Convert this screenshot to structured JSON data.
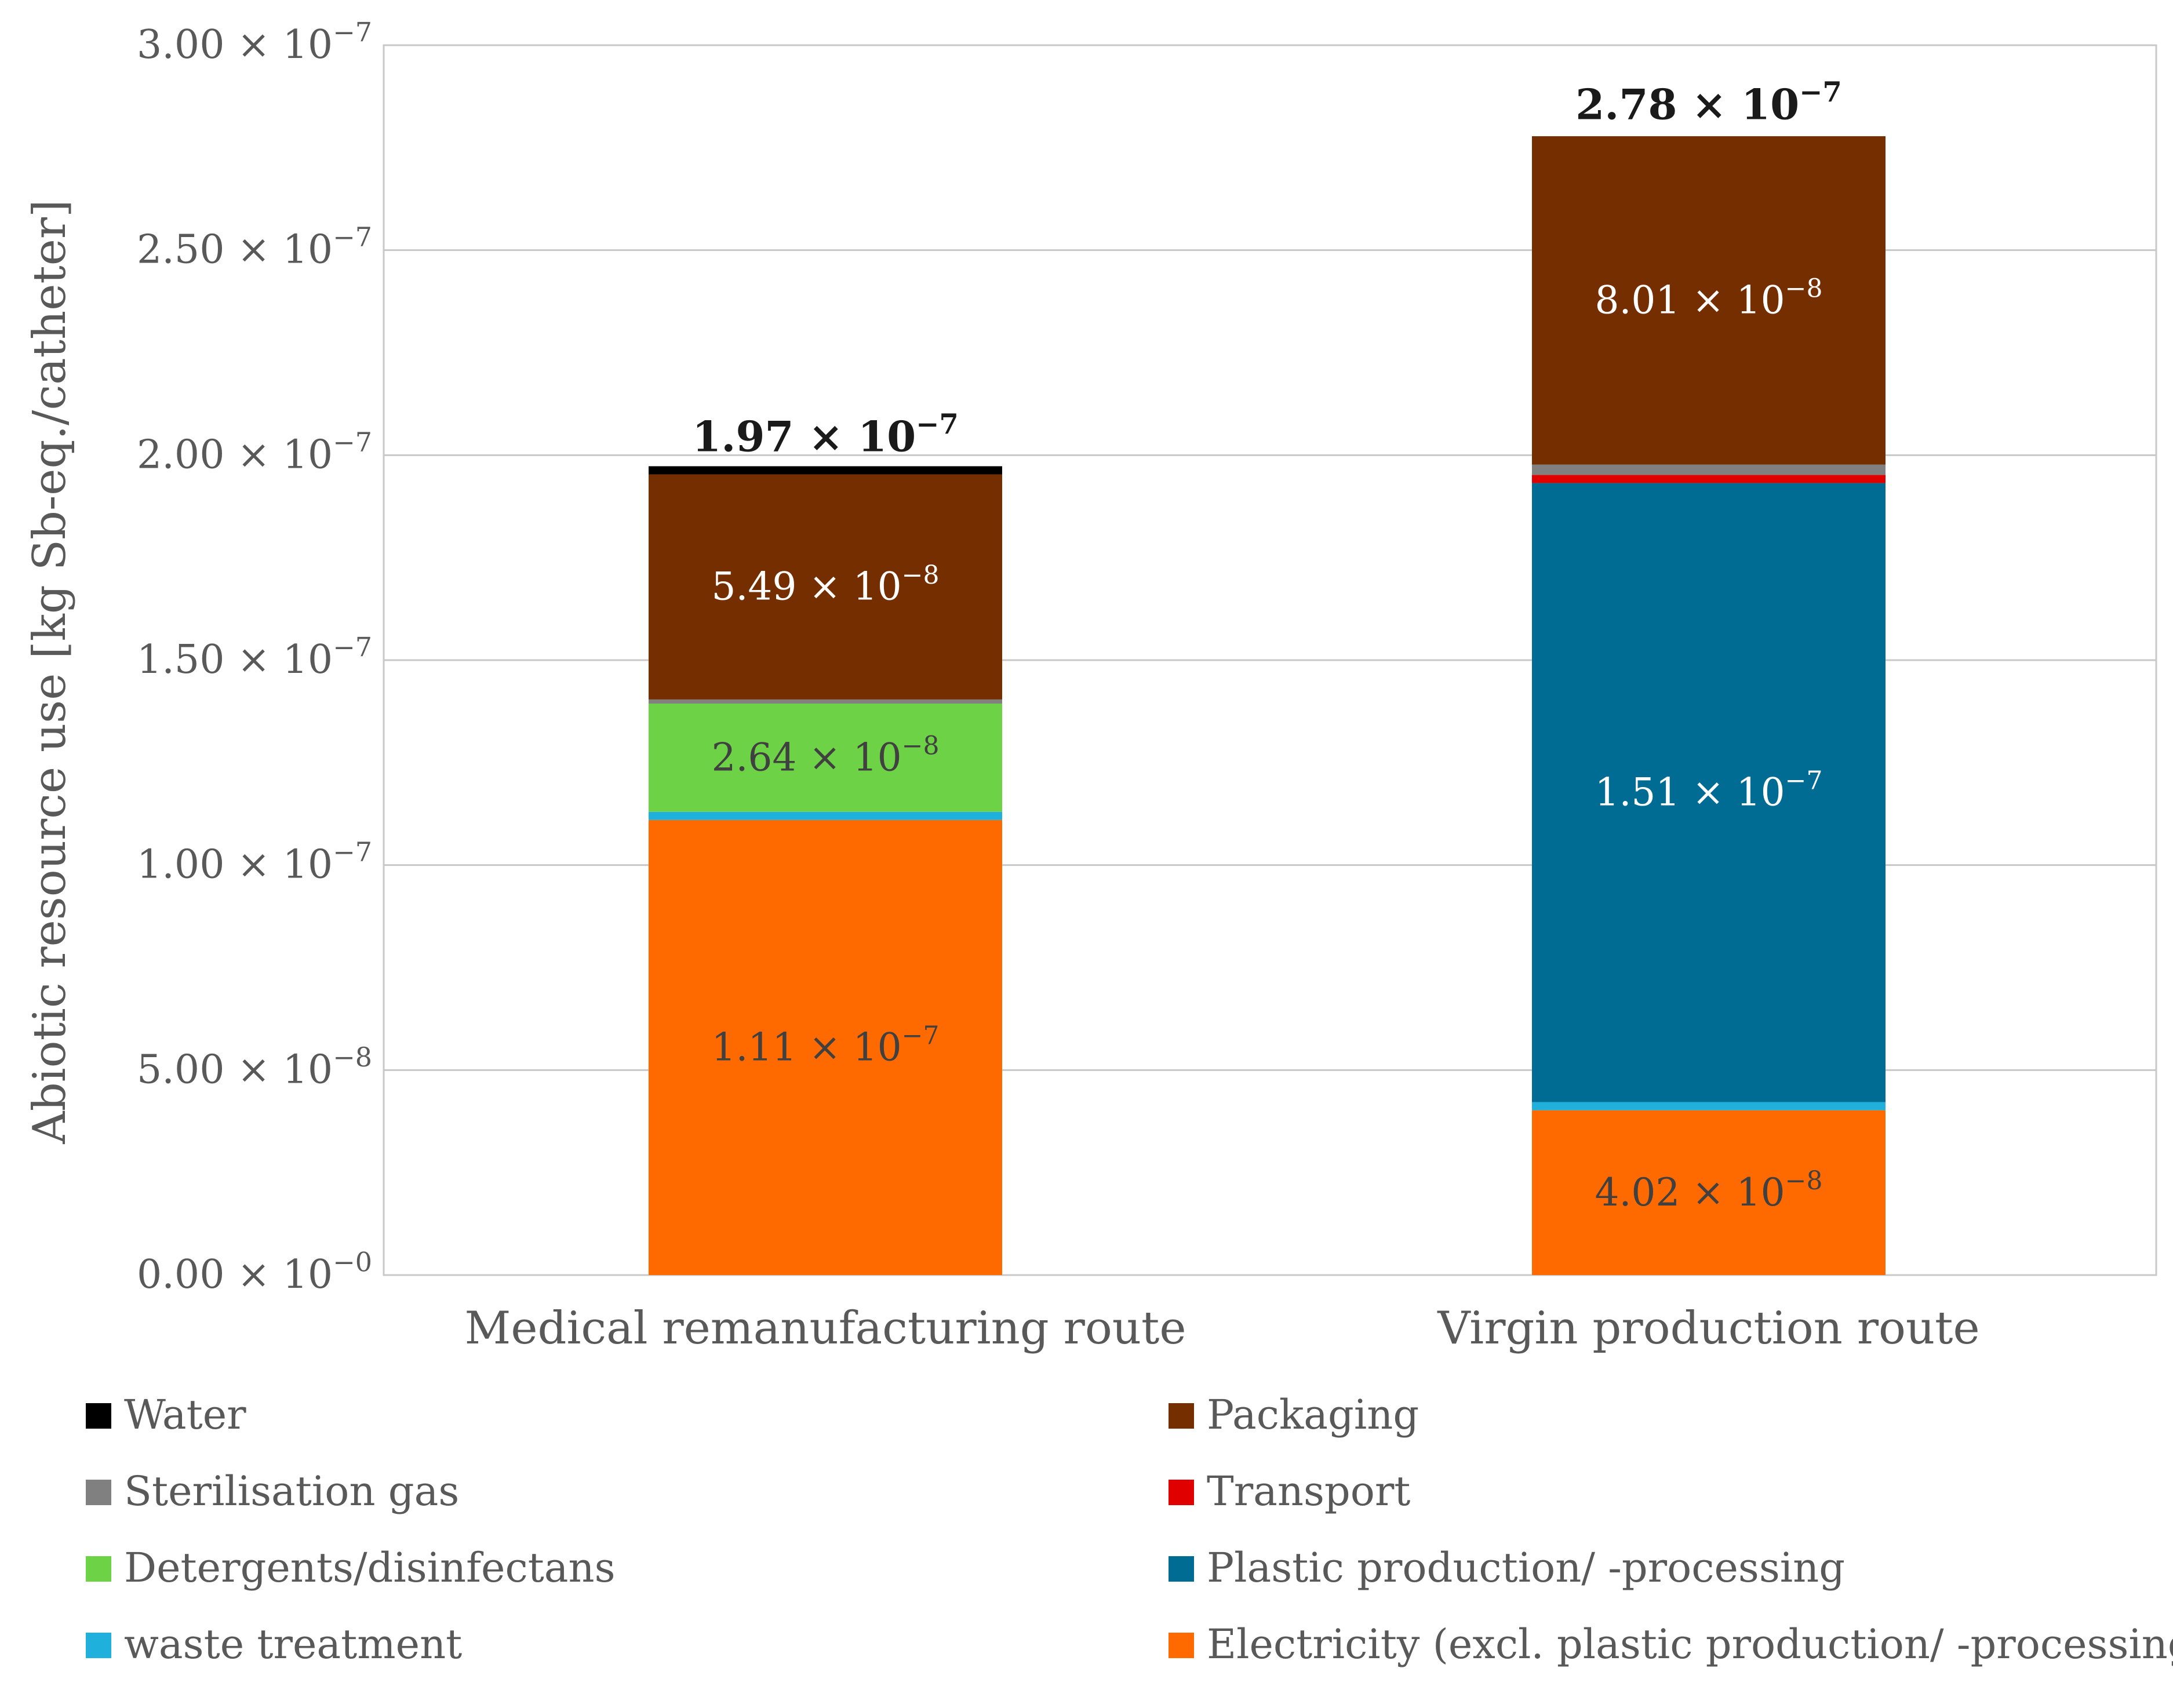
{
  "chart_data": {
    "type": "bar",
    "stacked": true,
    "title": "",
    "xlabel": "",
    "ylabel": "Abiotic resource use [kg Sb-eq./catheter]",
    "ylim": [
      0,
      3e-07
    ],
    "yticks": [
      {
        "value": 0,
        "mantissa": "0.00",
        "exponent": "−0"
      },
      {
        "value": 5e-08,
        "mantissa": "5.00",
        "exponent": "−8"
      },
      {
        "value": 1e-07,
        "mantissa": "1.00",
        "exponent": "−7"
      },
      {
        "value": 1.5e-07,
        "mantissa": "1.50",
        "exponent": "−7"
      },
      {
        "value": 2e-07,
        "mantissa": "2.00",
        "exponent": "−7"
      },
      {
        "value": 2.5e-07,
        "mantissa": "2.50",
        "exponent": "−7"
      },
      {
        "value": 3e-07,
        "mantissa": "3.00",
        "exponent": "−7"
      }
    ],
    "times_symbol": "×",
    "base_symbol": "10",
    "categories": [
      "Medical remanufacturing route",
      "Virgin production route"
    ],
    "series": [
      {
        "name": "Electricity (excl. plastic production/ -processing)",
        "color": "#ff6a00",
        "values": [
          1.11e-07,
          4.02e-08
        ],
        "labels": [
          {
            "mantissa": "1.11",
            "exponent": "−7"
          },
          {
            "mantissa": "4.02",
            "exponent": "−8"
          }
        ],
        "label_color": "#404040"
      },
      {
        "name": "waste treatment",
        "color": "#1fb0dc",
        "values": [
          2e-09,
          2e-09
        ],
        "labels": [
          null,
          null
        ]
      },
      {
        "name": "Plastic production/ -processing",
        "color": "#006c94",
        "values": [
          0,
          1.51e-07
        ],
        "labels": [
          null,
          {
            "mantissa": "1.51",
            "exponent": "−7"
          }
        ],
        "label_color": "#ffffff"
      },
      {
        "name": "Detergents/disinfectans",
        "color": "#6ed246",
        "values": [
          2.64e-08,
          0
        ],
        "labels": [
          {
            "mantissa": "2.64",
            "exponent": "−8"
          },
          null
        ],
        "label_color": "#404040"
      },
      {
        "name": "Transport",
        "color": "#e00000",
        "values": [
          0,
          2e-09
        ],
        "labels": [
          null,
          null
        ]
      },
      {
        "name": "Sterilisation gas",
        "color": "#808080",
        "values": [
          1e-09,
          2.5e-09
        ],
        "labels": [
          null,
          null
        ]
      },
      {
        "name": "Packaging",
        "color": "#742e00",
        "values": [
          5.49e-08,
          8.01e-08
        ],
        "labels": [
          {
            "mantissa": "5.49",
            "exponent": "−8"
          },
          {
            "mantissa": "8.01",
            "exponent": "−8"
          }
        ],
        "label_color": "#ffffff"
      },
      {
        "name": "Water",
        "color": "#000000",
        "values": [
          2e-09,
          0
        ],
        "labels": [
          null,
          null
        ]
      }
    ],
    "totals": [
      {
        "value": 1.97e-07,
        "mantissa": "1.97",
        "exponent": "−7"
      },
      {
        "value": 2.78e-07,
        "mantissa": "2.78",
        "exponent": "−7"
      }
    ],
    "legend": {
      "placement": "bottom",
      "columns": [
        [
          "Water",
          "Sterilisation gas",
          "Detergents/disinfectans",
          "waste treatment"
        ],
        [
          "Packaging",
          "Transport",
          "Plastic production/ -processing",
          "Electricity (excl. plastic production/ -processing)"
        ]
      ]
    },
    "grid": true
  }
}
